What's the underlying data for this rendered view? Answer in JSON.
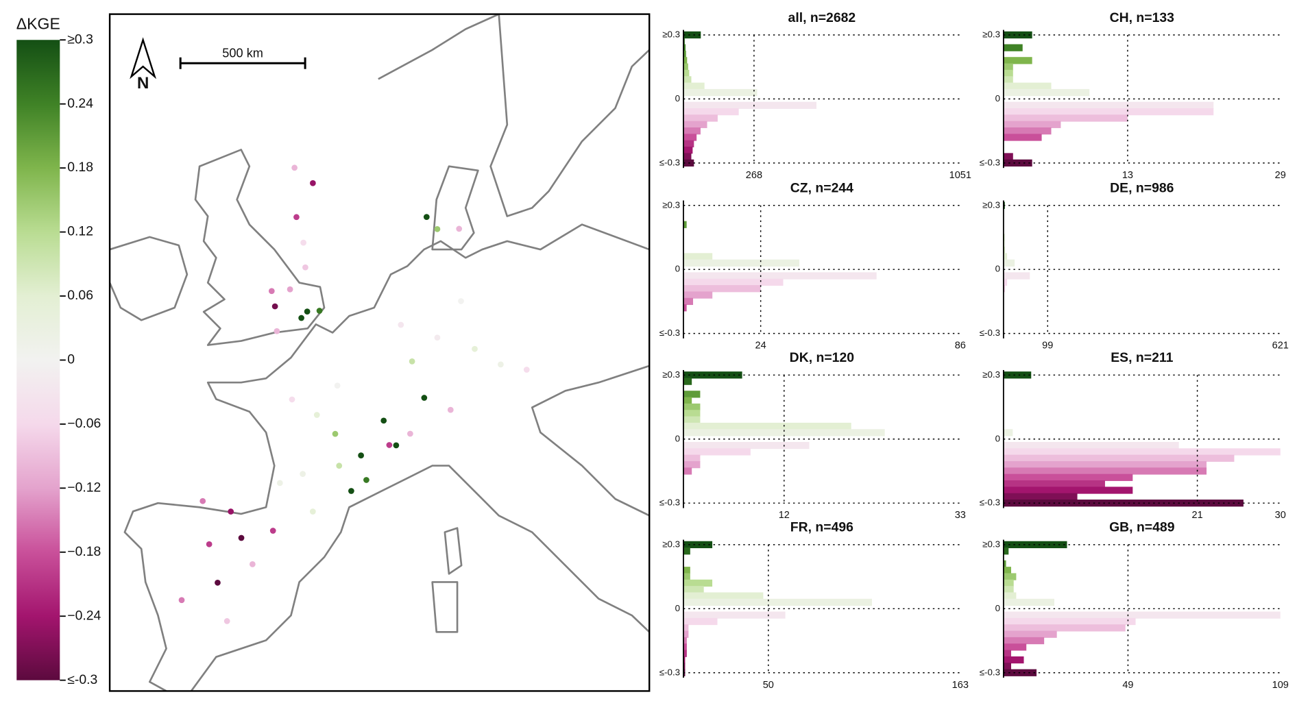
{
  "chart_data": [
    {
      "type": "map",
      "title": "ΔKGE",
      "scale_bar_label": "500 km",
      "north_label": "N",
      "colormap": [
        "#5c0a3e",
        "#a3156e",
        "#c9509a",
        "#e4a3cd",
        "#f5d9eb",
        "#f2f2f0",
        "#e3efd3",
        "#b9dc92",
        "#7fb54c",
        "#3f8226",
        "#144f14"
      ],
      "ylim": [
        -0.3,
        0.3
      ],
      "yticks": [
        {
          "value": 0.3,
          "label": "≥0.3"
        },
        0.24,
        0.18,
        0.12,
        0.06,
        0,
        {
          "value": -0.06,
          "label": "−0.06"
        },
        {
          "value": -0.12,
          "label": "−0.12"
        },
        {
          "value": -0.18,
          "label": "−0.18"
        },
        {
          "value": -0.24,
          "label": "−0.24"
        },
        {
          "value": -0.3,
          "label": "≤-0.3"
        }
      ],
      "points": {
        "lon": [
          -3,
          -2,
          -4,
          -1.5,
          -2.5,
          -0.8,
          -1.2,
          0.2,
          -3.5,
          -4,
          -2,
          -3,
          2.3,
          1,
          -1,
          4.5,
          5,
          4,
          3,
          0.5,
          6.5,
          6,
          1.5,
          -1,
          2.5,
          10,
          12,
          8,
          9,
          11,
          13,
          7,
          9,
          10,
          12,
          15,
          17,
          -4,
          -6,
          -3,
          -5,
          -4,
          -2,
          -6,
          -3,
          -1,
          8,
          7
        ],
        "lat": [
          55.5,
          57,
          57.5,
          53.5,
          52.5,
          51.7,
          51.4,
          51.8,
          51.7,
          52.3,
          54.5,
          50.7,
          48.8,
          47.5,
          48,
          46,
          45,
          44.5,
          45.5,
          45,
          46.5,
          47.5,
          43.5,
          44.5,
          46.8,
          51,
          52.5,
          50,
          48.5,
          48,
          50.5,
          51.5,
          56,
          55.5,
          55.5,
          49.8,
          49.5,
          43,
          43.2,
          42,
          41.5,
          40,
          41,
          39,
          38.5,
          42.5,
          47,
          46.5
        ],
        "values": [
          -0.2,
          -0.25,
          -0.1,
          -0.08,
          -0.12,
          0.3,
          0.3,
          0.25,
          -0.28,
          -0.15,
          -0.05,
          -0.1,
          0,
          0.05,
          -0.05,
          0.3,
          0.25,
          0.3,
          0.1,
          0.02,
          -0.2,
          0.3,
          0.05,
          0.02,
          0.15,
          -0.02,
          0,
          0.1,
          0.3,
          -0.1,
          0.05,
          -0.03,
          0.3,
          0.15,
          -0.1,
          0.02,
          -0.05,
          -0.25,
          -0.15,
          -0.3,
          -0.2,
          -0.3,
          -0.1,
          -0.15,
          -0.08,
          -0.2,
          -0.1,
          0.3
        ]
      }
    },
    {
      "type": "barh",
      "title": "all, n=2682",
      "y": [
        0.3,
        0.27,
        0.24,
        0.21,
        0.18,
        0.15,
        0.12,
        0.09,
        0.06,
        0.03,
        -0.03,
        -0.06,
        -0.09,
        -0.12,
        -0.15,
        -0.18,
        -0.21,
        -0.24,
        -0.27,
        -0.3
      ],
      "values": [
        66,
        5,
        8,
        10,
        14,
        18,
        22,
        30,
        80,
        280,
        505,
        210,
        130,
        90,
        65,
        50,
        40,
        35,
        30,
        40
      ],
      "xlim": [
        0,
        1051
      ],
      "xticks": [
        268,
        1051
      ],
      "ylim": [
        -0.3,
        0.3
      ],
      "yticks": [
        {
          "value": 0.3,
          "label": "≥0.3"
        },
        0,
        {
          "value": -0.3,
          "label": "≤-0.3"
        }
      ]
    },
    {
      "type": "barh",
      "title": "CH, n=133",
      "y": [
        0.3,
        0.27,
        0.24,
        0.21,
        0.18,
        0.15,
        0.12,
        0.09,
        0.06,
        0.03,
        -0.03,
        -0.06,
        -0.09,
        -0.12,
        -0.15,
        -0.18,
        -0.21,
        -0.24,
        -0.27,
        -0.3
      ],
      "values": [
        3,
        0,
        2,
        0,
        3,
        1,
        1,
        1,
        5,
        9,
        22,
        22,
        13,
        6,
        5,
        4,
        0,
        0,
        1,
        3
      ],
      "xlim": [
        0,
        29
      ],
      "xticks": [
        13,
        29
      ],
      "ylim": [
        -0.3,
        0.3
      ],
      "yticks": [
        {
          "value": 0.3,
          "label": "≥0.3"
        },
        0,
        {
          "value": -0.3,
          "label": "≤-0.3"
        }
      ]
    },
    {
      "type": "barh",
      "title": "CZ, n=244",
      "y": [
        0.3,
        0.27,
        0.24,
        0.21,
        0.18,
        0.15,
        0.12,
        0.09,
        0.06,
        0.03,
        -0.03,
        -0.06,
        -0.09,
        -0.12,
        -0.15,
        -0.18,
        -0.21,
        -0.24,
        -0.27,
        -0.3
      ],
      "values": [
        0,
        0,
        0,
        1,
        0,
        0,
        0,
        0,
        9,
        36,
        60,
        31,
        24,
        9,
        3,
        1,
        0,
        0,
        0,
        0
      ],
      "xlim": [
        0,
        86
      ],
      "xticks": [
        24,
        86
      ],
      "ylim": [
        -0.3,
        0.3
      ],
      "yticks": [
        {
          "value": 0.3,
          "label": "≥0.3"
        },
        0,
        {
          "value": -0.3,
          "label": "≤-0.3"
        }
      ]
    },
    {
      "type": "barh",
      "title": "DE, n=986",
      "y": [
        0.3,
        0.27,
        0.24,
        0.21,
        0.18,
        0.15,
        0.12,
        0.09,
        0.06,
        0.03,
        -0.03,
        -0.06,
        -0.09,
        -0.12,
        -0.15,
        -0.18,
        -0.21,
        -0.24,
        -0.27,
        -0.3
      ],
      "values": [
        3,
        1,
        1,
        1,
        1,
        2,
        2,
        3,
        8,
        25,
        59,
        8,
        3,
        1,
        1,
        0,
        0,
        0,
        0,
        0
      ],
      "xlim": [
        0,
        621
      ],
      "xticks": [
        99,
        621
      ],
      "ylim": [
        -0.3,
        0.3
      ],
      "yticks": [
        {
          "value": 0.3,
          "label": "≥0.3"
        },
        0,
        {
          "value": -0.3,
          "label": "≤-0.3"
        }
      ]
    },
    {
      "type": "barh",
      "title": "DK, n=120",
      "y": [
        0.3,
        0.27,
        0.24,
        0.21,
        0.18,
        0.15,
        0.12,
        0.09,
        0.06,
        0.03,
        -0.03,
        -0.06,
        -0.09,
        -0.12,
        -0.15,
        -0.18,
        -0.21,
        -0.24,
        -0.27,
        -0.3
      ],
      "values": [
        7,
        1,
        0,
        2,
        1,
        2,
        2,
        2,
        20,
        24,
        15,
        8,
        2,
        2,
        1,
        0,
        0,
        0,
        0,
        0
      ],
      "xlim": [
        0,
        33
      ],
      "xticks": [
        12,
        33
      ],
      "ylim": [
        -0.3,
        0.3
      ],
      "yticks": [
        {
          "value": 0.3,
          "label": "≥0.3"
        },
        0,
        {
          "value": -0.3,
          "label": "≤-0.3"
        }
      ]
    },
    {
      "type": "barh",
      "title": "ES, n=211",
      "y": [
        0.3,
        0.27,
        0.24,
        0.21,
        0.18,
        0.15,
        0.12,
        0.09,
        0.06,
        0.03,
        -0.03,
        -0.06,
        -0.09,
        -0.12,
        -0.15,
        -0.18,
        -0.21,
        -0.24,
        -0.27,
        -0.3
      ],
      "values": [
        3,
        0,
        0,
        0,
        0,
        0,
        0,
        0,
        0,
        1,
        19,
        30,
        25,
        22,
        22,
        14,
        11,
        14,
        8,
        26
      ],
      "xlim": [
        0,
        30
      ],
      "xticks": [
        21,
        30
      ],
      "ylim": [
        -0.3,
        0.3
      ],
      "yticks": [
        {
          "value": 0.3,
          "label": "≥0.3"
        },
        0,
        {
          "value": -0.3,
          "label": "≤-0.3"
        }
      ]
    },
    {
      "type": "barh",
      "title": "FR, n=496",
      "y": [
        0.3,
        0.27,
        0.24,
        0.21,
        0.18,
        0.15,
        0.12,
        0.09,
        0.06,
        0.03,
        -0.03,
        -0.06,
        -0.09,
        -0.12,
        -0.15,
        -0.18,
        -0.21,
        -0.24,
        -0.27,
        -0.3
      ],
      "values": [
        17,
        4,
        0,
        0,
        4,
        4,
        17,
        12,
        47,
        111,
        60,
        20,
        3,
        3,
        2,
        2,
        2,
        1,
        1,
        1
      ],
      "xlim": [
        0,
        163
      ],
      "xticks": [
        50,
        163
      ],
      "ylim": [
        -0.3,
        0.3
      ],
      "yticks": [
        {
          "value": 0.3,
          "label": "≥0.3"
        },
        0,
        {
          "value": -0.3,
          "label": "≤-0.3"
        }
      ]
    },
    {
      "type": "barh",
      "title": "GB, n=489",
      "y": [
        0.3,
        0.27,
        0.24,
        0.21,
        0.18,
        0.15,
        0.12,
        0.09,
        0.06,
        0.03,
        -0.03,
        -0.06,
        -0.09,
        -0.12,
        -0.15,
        -0.18,
        -0.21,
        -0.24,
        -0.27,
        -0.3
      ],
      "values": [
        25,
        2,
        0,
        1,
        3,
        5,
        4,
        4,
        5,
        20,
        109,
        52,
        48,
        21,
        16,
        9,
        3,
        8,
        3,
        13
      ],
      "xlim": [
        0,
        109
      ],
      "xticks": [
        49,
        109
      ],
      "ylim": [
        -0.3,
        0.3
      ],
      "yticks": [
        {
          "value": 0.3,
          "label": "≥0.3"
        },
        0,
        {
          "value": -0.3,
          "label": "≤-0.3"
        }
      ]
    }
  ]
}
